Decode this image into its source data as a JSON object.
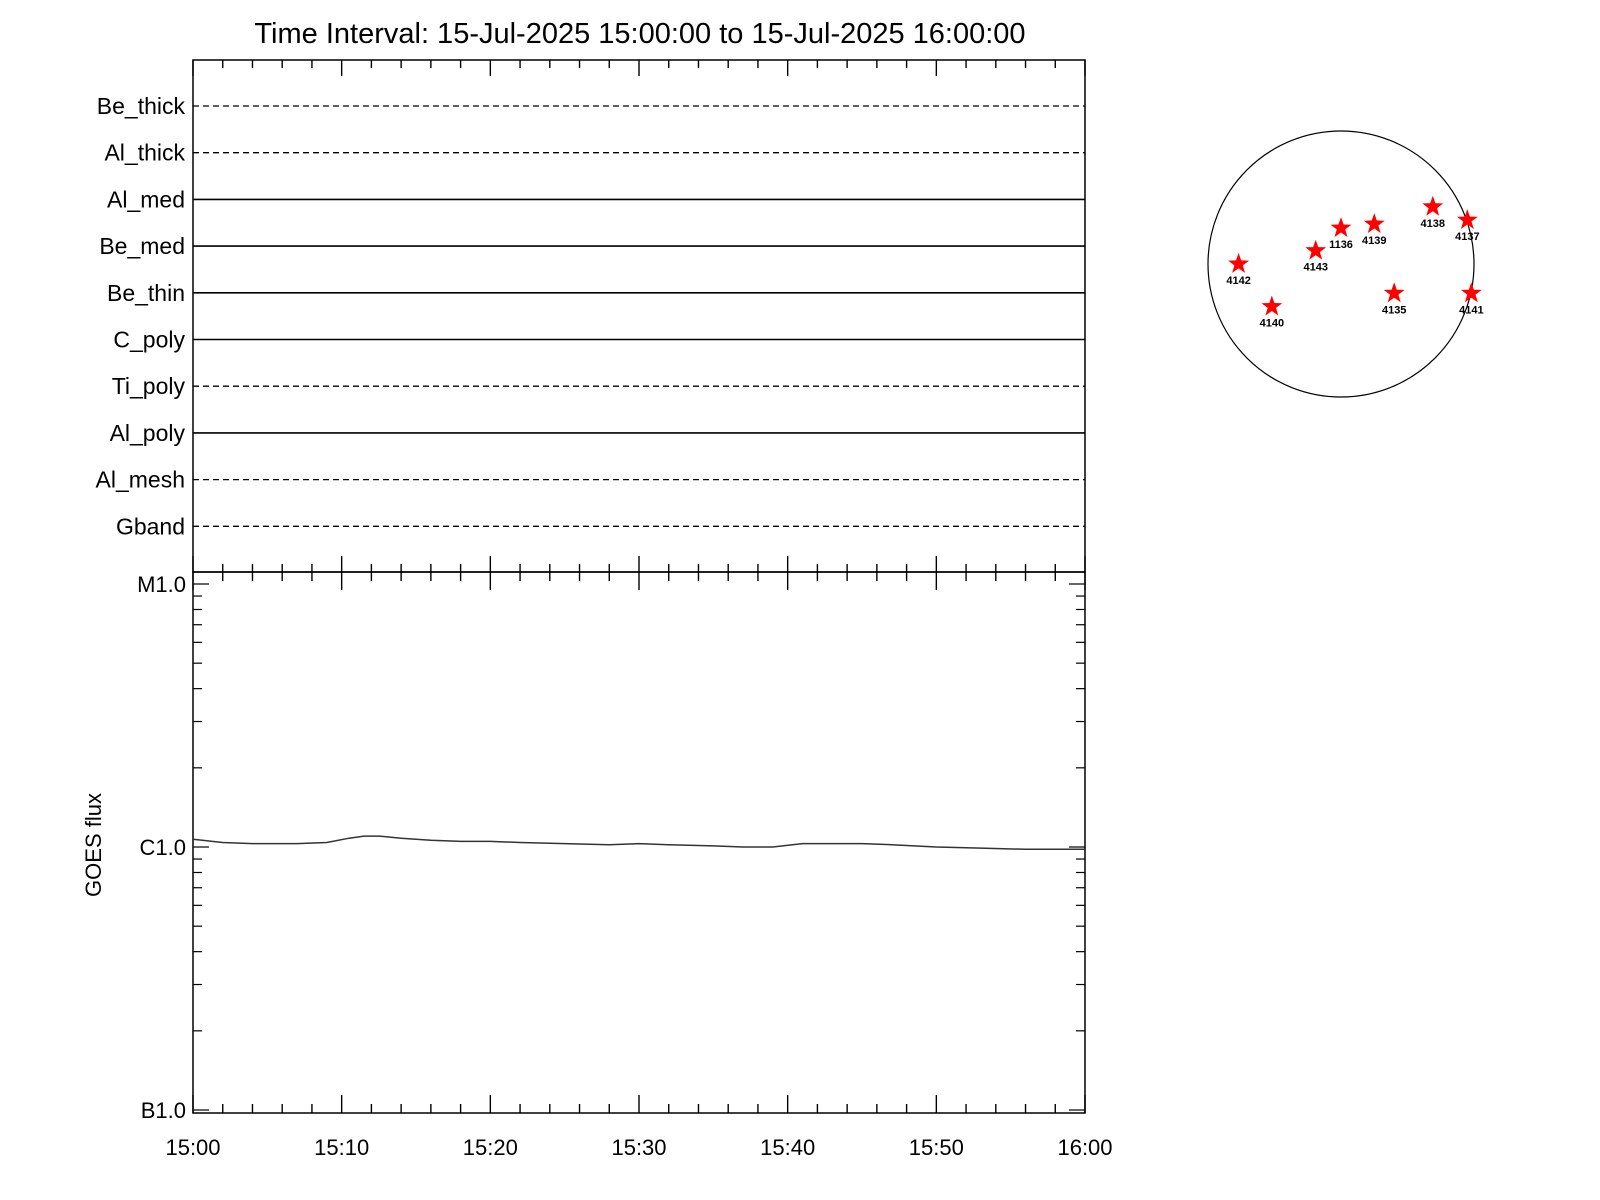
{
  "chart_data": [
    {
      "type": "line",
      "panel": "filter timeline",
      "title": "Time Interval: 15-Jul-2025 15:00:00 to 15-Jul-2025 16:00:00",
      "x_range": [
        "15:00",
        "16:00"
      ],
      "rows": [
        {
          "label": "Be_thick",
          "style": "dashed"
        },
        {
          "label": "Al_thick",
          "style": "dashed"
        },
        {
          "label": "Al_med",
          "style": "solid"
        },
        {
          "label": "Be_med",
          "style": "solid"
        },
        {
          "label": "Be_thin",
          "style": "solid"
        },
        {
          "label": "C_poly",
          "style": "solid"
        },
        {
          "label": "Ti_poly",
          "style": "dashed"
        },
        {
          "label": "Al_poly",
          "style": "solid"
        },
        {
          "label": "Al_mesh",
          "style": "dashed"
        },
        {
          "label": "Gband",
          "style": "dashed"
        }
      ]
    },
    {
      "type": "line",
      "panel": "goes",
      "ylabel": "GOES flux",
      "yscale": "log",
      "ylim": [
        1e-07,
        1e-05
      ],
      "y_ticks": [
        {
          "label": "M1.0",
          "value": 1e-05
        },
        {
          "label": "C1.0",
          "value": 1e-06
        },
        {
          "label": "B1.0",
          "value": 1e-07
        }
      ],
      "x_ticks": [
        "15:00",
        "15:10",
        "15:20",
        "15:30",
        "15:40",
        "15:50",
        "16:00"
      ],
      "x_minutes": [
        0,
        2,
        4,
        7,
        9,
        10.5,
        11.5,
        12.5,
        14,
        16,
        18,
        20,
        22,
        25,
        28,
        30,
        32,
        35,
        37,
        39,
        41,
        43,
        45,
        47,
        50,
        53,
        56,
        60
      ],
      "y_values": [
        1.07e-06,
        1.04e-06,
        1.03e-06,
        1.03e-06,
        1.04e-06,
        1.08e-06,
        1.1e-06,
        1.1e-06,
        1.08e-06,
        1.06e-06,
        1.05e-06,
        1.05e-06,
        1.04e-06,
        1.03e-06,
        1.02e-06,
        1.03e-06,
        1.02e-06,
        1.01e-06,
        1e-06,
        1e-06,
        1.03e-06,
        1.03e-06,
        1.03e-06,
        1.02e-06,
        1e-06,
        9.9e-07,
        9.8e-07,
        9.8e-07
      ]
    },
    {
      "type": "scatter",
      "panel": "solar disk",
      "points": [
        {
          "label": "4142",
          "x": -0.77,
          "y": 0.0
        },
        {
          "label": "4140",
          "x": -0.52,
          "y": -0.32
        },
        {
          "label": "4143",
          "x": -0.19,
          "y": 0.1
        },
        {
          "label": "1136",
          "x": 0.0,
          "y": 0.27
        },
        {
          "label": "4139",
          "x": 0.25,
          "y": 0.3
        },
        {
          "label": "4138",
          "x": 0.69,
          "y": 0.43
        },
        {
          "label": "4137",
          "x": 0.95,
          "y": 0.33
        },
        {
          "label": "4135",
          "x": 0.4,
          "y": -0.22
        },
        {
          "label": "4141",
          "x": 0.98,
          "y": -0.22
        }
      ],
      "marker_color": "#ff0000"
    }
  ]
}
